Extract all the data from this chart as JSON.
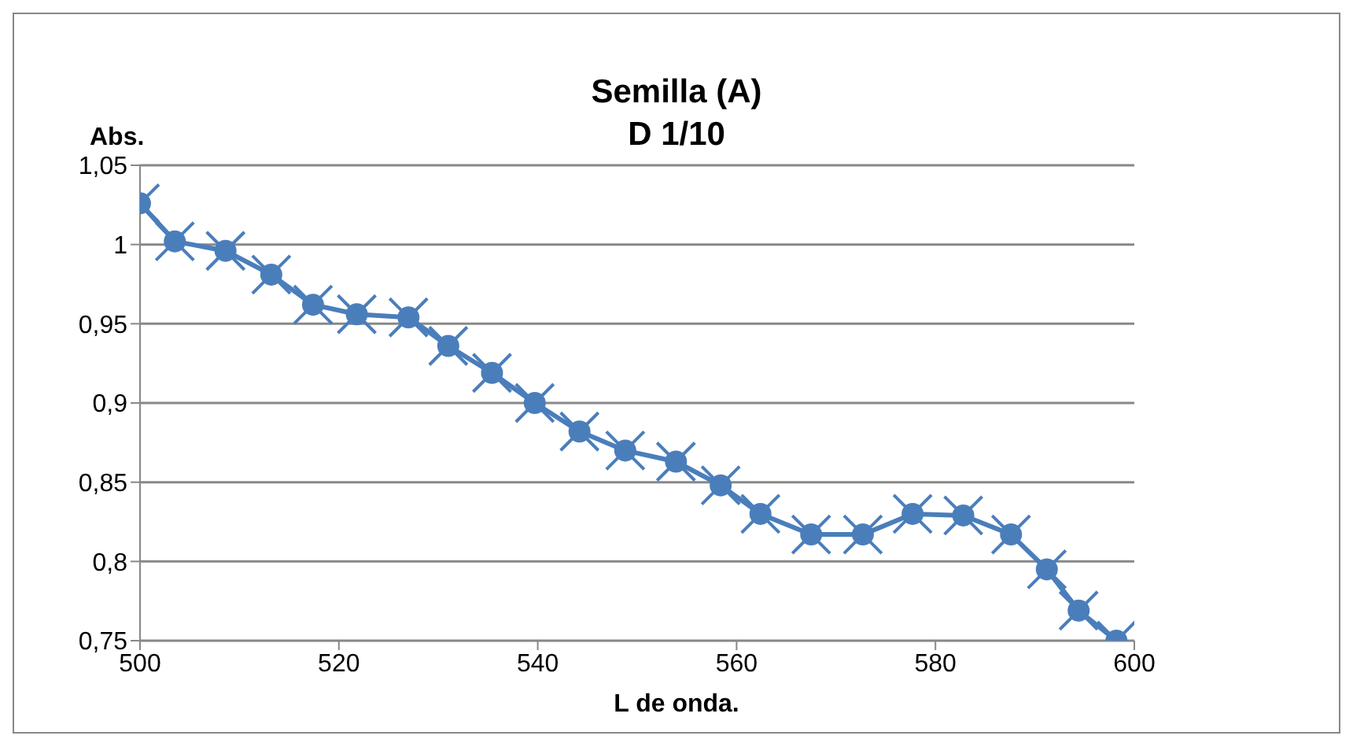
{
  "chart_data": {
    "type": "line",
    "title": "Semilla (A)\nD 1/10",
    "xlabel": "L de onda.",
    "ylabel": "Abs.",
    "x": [
      500,
      503.5,
      508.6,
      513.2,
      517.4,
      521.8,
      527,
      531,
      535.4,
      539.7,
      544.2,
      548.8,
      553.9,
      558.4,
      562.4,
      567.5,
      572.7,
      577.7,
      582.8,
      587.6,
      591.2,
      594.4,
      598.2
    ],
    "series": [
      {
        "color": "#4a7ebb",
        "marker": "circle",
        "values": [
          1.026,
          1.002,
          0.996,
          0.981,
          0.962,
          0.956,
          0.954,
          0.936,
          0.919,
          0.9,
          0.882,
          0.87,
          0.863,
          0.848,
          0.83,
          0.817,
          0.817,
          0.83,
          0.829,
          0.817,
          0.795,
          0.769,
          0.75
        ]
      }
    ],
    "xlim": [
      500,
      600
    ],
    "xticks": [
      500,
      520,
      540,
      560,
      580,
      600
    ],
    "ylim": [
      0.75,
      1.05
    ],
    "yticks": [
      {
        "value": 0.75,
        "label": "0,75"
      },
      {
        "value": 0.8,
        "label": "0,8"
      },
      {
        "value": 0.85,
        "label": "0,85"
      },
      {
        "value": 0.9,
        "label": "0,9"
      },
      {
        "value": 0.95,
        "label": "0,95"
      },
      {
        "value": 1,
        "label": "1"
      },
      {
        "value": 1.05,
        "label": "1,05"
      }
    ],
    "grid": "y",
    "legend": false
  }
}
